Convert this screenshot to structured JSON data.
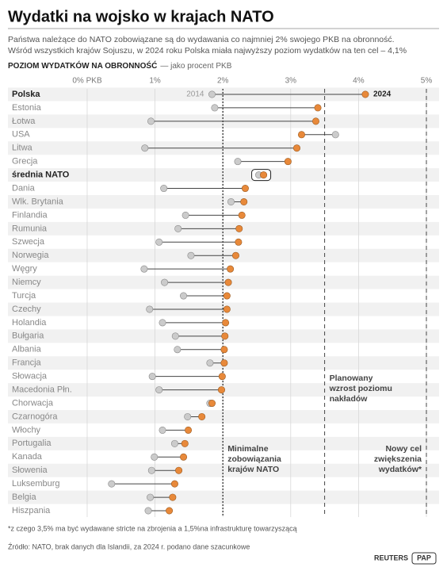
{
  "chart_data": {
    "type": "dumbbell",
    "title": "Wydatki na wojsko w krajach NATO",
    "subtitle": [
      "Państwa należące do NATO zobowiązane są do wydawania co najmniej 2% swojego PKB na obronność.",
      "Wśród wszystkich krajów Sojuszu, w 2024 roku Polska miała najwyższy poziom wydatków na ten cel – 4,1%"
    ],
    "axis_title": "POZIOM WYDATKÓW NA OBRONNOŚĆ",
    "axis_subtitle": "— jako procent PKB",
    "categories": [
      "Polska",
      "Estonia",
      "Łotwa",
      "USA",
      "Litwa",
      "Grecja",
      "średnia NATO",
      "Dania",
      "Wlk. Brytania",
      "Finlandia",
      "Rumunia",
      "Szwecja",
      "Norwegia",
      "Węgry",
      "Niemcy",
      "Turcja",
      "Czechy",
      "Holandia",
      "Bułgaria",
      "Albania",
      "Francja",
      "Słowacja",
      "Macedonia Płn.",
      "Chorwacja",
      "Czarnogóra",
      "Włochy",
      "Portugalia",
      "Kanada",
      "Słowenia",
      "Luksemburg",
      "Belgia",
      "Hiszpania"
    ],
    "series": [
      {
        "name": "2014",
        "color": "#cbcbcb",
        "values": [
          1.84,
          1.88,
          0.94,
          3.66,
          0.85,
          2.22,
          2.53,
          1.13,
          2.12,
          1.45,
          1.34,
          1.06,
          1.53,
          0.84,
          1.14,
          1.42,
          0.92,
          1.11,
          1.3,
          1.33,
          1.81,
          0.96,
          1.06,
          1.81,
          1.48,
          1.11,
          1.29,
          0.99,
          0.95,
          0.36,
          0.93,
          0.9
        ]
      },
      {
        "name": "2024",
        "color": "#e8893a",
        "values": [
          4.1,
          3.4,
          3.37,
          3.16,
          3.09,
          2.96,
          2.6,
          2.33,
          2.31,
          2.28,
          2.24,
          2.23,
          2.19,
          2.11,
          2.08,
          2.06,
          2.06,
          2.04,
          2.03,
          2.02,
          2.02,
          1.99,
          1.98,
          1.84,
          1.69,
          1.49,
          1.44,
          1.42,
          1.35,
          1.29,
          1.26,
          1.21
        ]
      }
    ],
    "xlim": [
      0,
      5
    ],
    "xticks": [
      {
        "value": 0,
        "label": "0% PKB"
      },
      {
        "value": 1,
        "label": "1%"
      },
      {
        "value": 2,
        "label": "2%"
      },
      {
        "value": 3,
        "label": "3%"
      },
      {
        "value": 4,
        "label": "4%"
      },
      {
        "value": 5,
        "label": "5%"
      }
    ],
    "grid": true,
    "reference_lines": [
      {
        "value": 2,
        "label": [
          "Minimalne",
          "zobowiązania",
          "krajów NATO"
        ]
      },
      {
        "value": 3.5,
        "label": [
          "Planowany",
          "wzrost poziomu",
          "nakładów"
        ]
      },
      {
        "value": 5,
        "label": [
          "Nowy cel",
          "zwiększenia",
          "wydatków*"
        ]
      }
    ],
    "footnote": "*z czego 3,5% ma być wydawane stricte na zbrojenia a 1,5%na infrastrukturę towarzyszącą",
    "source": "Źródło: NATO, brak danych dla Islandii, za 2024 r. podano dane szacunkowe",
    "credits": [
      "REUTERS",
      "PAP"
    ]
  }
}
